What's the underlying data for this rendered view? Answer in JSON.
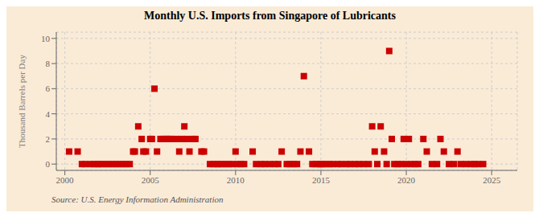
{
  "chart_data": {
    "type": "scatter",
    "title": "Monthly U.S. Imports from Singapore of Lubricants",
    "ylabel": "Thousand Barrels per Day",
    "annotations": [
      "Source: U.S. Energy Information Administration"
    ],
    "color": "#cc0000",
    "marker": "square",
    "grid": true,
    "xlim": [
      1999.5,
      2026.5
    ],
    "ylim": [
      -0.5,
      10.5
    ],
    "xticks": [
      2000,
      2005,
      2010,
      2015,
      2020,
      2025
    ],
    "yticks": [
      0,
      2,
      4,
      6,
      8,
      10
    ],
    "x": [
      2000.25,
      2000.75,
      2001.0,
      2001.2,
      2001.5,
      2001.7,
      2001.9,
      2002.0,
      2002.2,
      2002.4,
      2002.6,
      2002.8,
      2003.0,
      2003.2,
      2003.4,
      2003.6,
      2003.8,
      2004.0,
      2004.1,
      2004.3,
      2004.5,
      2004.6,
      2004.75,
      2005.0,
      2005.1,
      2005.25,
      2005.4,
      2005.6,
      2005.75,
      2005.9,
      2006.0,
      2006.1,
      2006.25,
      2006.5,
      2006.7,
      2006.85,
      2007.0,
      2007.15,
      2007.3,
      2007.5,
      2007.65,
      2008.0,
      2008.15,
      2008.5,
      2008.7,
      2008.9,
      2009.0,
      2009.2,
      2009.4,
      2009.6,
      2009.8,
      2010.0,
      2010.1,
      2010.3,
      2010.5,
      2011.0,
      2011.2,
      2011.5,
      2011.7,
      2012.0,
      2012.3,
      2012.5,
      2012.7,
      2013.0,
      2013.2,
      2013.4,
      2013.6,
      2013.8,
      2014.0,
      2014.3,
      2014.5,
      2014.7,
      2014.9,
      2015.0,
      2015.1,
      2015.3,
      2015.5,
      2015.7,
      2016.0,
      2016.2,
      2016.5,
      2016.7,
      2017.0,
      2017.2,
      2017.5,
      2017.8,
      2018.0,
      2018.15,
      2018.3,
      2018.5,
      2018.7,
      2018.85,
      2019.0,
      2019.15,
      2019.3,
      2019.5,
      2019.7,
      2019.85,
      2020.0,
      2020.15,
      2020.3,
      2020.5,
      2020.7,
      2021.0,
      2021.2,
      2021.5,
      2021.8,
      2022.0,
      2022.2,
      2022.5,
      2022.8,
      2023.0,
      2023.2,
      2023.5,
      2023.8,
      2024.0,
      2024.2,
      2024.5
    ],
    "values": [
      1,
      1,
      0,
      0,
      0,
      0,
      0,
      0,
      0,
      0,
      0,
      0,
      0,
      0,
      0,
      0,
      0,
      1,
      1,
      3,
      2,
      1,
      1,
      2,
      2,
      6,
      1,
      2,
      2,
      2,
      2,
      2,
      2,
      2,
      1,
      2,
      3,
      2,
      1,
      2,
      2,
      1,
      1,
      0,
      0,
      0,
      0,
      0,
      0,
      0,
      0,
      1,
      0,
      0,
      0,
      1,
      0,
      0,
      0,
      0,
      0,
      0,
      1,
      0,
      0,
      0,
      0,
      1,
      7,
      1,
      0,
      0,
      0,
      0,
      0,
      0,
      0,
      0,
      0,
      0,
      0,
      0,
      0,
      0,
      0,
      0,
      3,
      1,
      0,
      3,
      1,
      0,
      9,
      2,
      0,
      0,
      0,
      2,
      0,
      2,
      0,
      0,
      0,
      2,
      1,
      0,
      0,
      2,
      1,
      0,
      0,
      1,
      0,
      0,
      0,
      0,
      0,
      0
    ]
  }
}
